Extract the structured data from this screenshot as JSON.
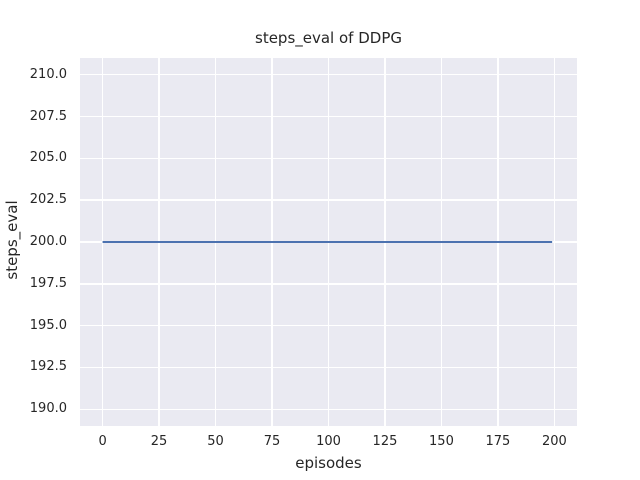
{
  "chart_data": {
    "type": "line",
    "title": "steps_eval of DDPG",
    "xlabel": "episodes",
    "ylabel": "steps_eval",
    "xlim": [
      -10,
      210
    ],
    "ylim": [
      189,
      211
    ],
    "xtick_values": [
      0,
      25,
      50,
      75,
      100,
      125,
      150,
      175,
      200
    ],
    "xtick_labels": [
      "0",
      "25",
      "50",
      "75",
      "100",
      "125",
      "150",
      "175",
      "200"
    ],
    "ytick_values": [
      190.0,
      192.5,
      195.0,
      197.5,
      200.0,
      202.5,
      205.0,
      207.5,
      210.0
    ],
    "ytick_labels": [
      "190.0",
      "192.5",
      "195.0",
      "197.5",
      "200.0",
      "202.5",
      "205.0",
      "207.5",
      "210.0"
    ],
    "grid": true,
    "legend_position": "none",
    "colors": {
      "plot_background": "#eaeaf2",
      "grid": "#ffffff",
      "text": "#262626",
      "line": "#4c72b0"
    },
    "series": [
      {
        "name": "DDPG",
        "color": "#4c72b0",
        "x": [
          0,
          199
        ],
        "y": [
          200,
          200
        ]
      }
    ]
  }
}
